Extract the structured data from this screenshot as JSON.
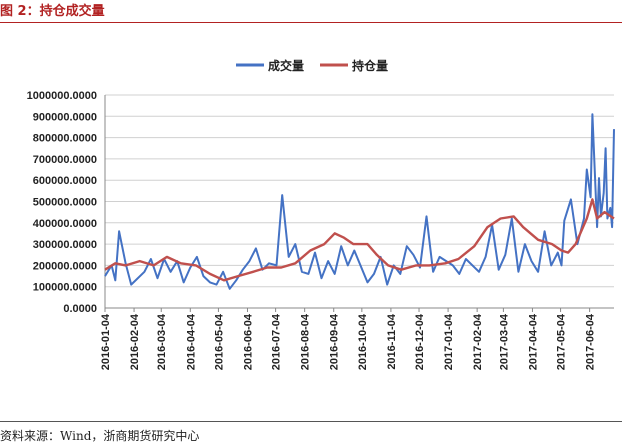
{
  "figure_title": "图 2：持仓成交量",
  "source_note": "资料来源：Wind，浙商期货研究中心",
  "chart_data": {
    "type": "line",
    "title": "",
    "xlabel": "",
    "ylabel": "",
    "ylim": [
      0,
      1000000
    ],
    "yticks": [
      "0.0000",
      "100000.0000",
      "200000.0000",
      "300000.0000",
      "400000.0000",
      "500000.0000",
      "600000.0000",
      "700000.0000",
      "800000.0000",
      "900000.0000",
      "1000000.0000"
    ],
    "xticks": [
      "2016-01-04",
      "2016-02-04",
      "2016-03-04",
      "2016-04-04",
      "2016-05-04",
      "2016-06-04",
      "2016-07-04",
      "2016-08-04",
      "2016-09-04",
      "2016-10-04",
      "2016-11-04",
      "2016-12-04",
      "2017-01-04",
      "2017-02-04",
      "2017-03-04",
      "2017-04-04",
      "2017-05-04",
      "2017-06-04"
    ],
    "xlim": [
      "2016-01-04",
      "2017-06-30"
    ],
    "grid": true,
    "legend_position": "top-center",
    "series": [
      {
        "name": "成交量",
        "color": "#4472c4",
        "x": [
          "2016-01-04",
          "2016-01-11",
          "2016-01-15",
          "2016-01-19",
          "2016-01-26",
          "2016-02-01",
          "2016-02-15",
          "2016-02-22",
          "2016-02-29",
          "2016-03-07",
          "2016-03-14",
          "2016-03-21",
          "2016-03-28",
          "2016-04-04",
          "2016-04-11",
          "2016-04-18",
          "2016-04-25",
          "2016-05-02",
          "2016-05-09",
          "2016-05-16",
          "2016-05-23",
          "2016-05-30",
          "2016-06-06",
          "2016-06-13",
          "2016-06-20",
          "2016-06-27",
          "2016-07-05",
          "2016-07-11",
          "2016-07-18",
          "2016-07-25",
          "2016-08-01",
          "2016-08-08",
          "2016-08-15",
          "2016-08-22",
          "2016-08-29",
          "2016-09-05",
          "2016-09-12",
          "2016-09-19",
          "2016-09-26",
          "2016-10-10",
          "2016-10-17",
          "2016-10-24",
          "2016-10-31",
          "2016-11-07",
          "2016-11-14",
          "2016-11-21",
          "2016-11-28",
          "2016-12-05",
          "2016-12-12",
          "2016-12-19",
          "2016-12-26",
          "2017-01-09",
          "2017-01-16",
          "2017-01-23",
          "2017-02-06",
          "2017-02-13",
          "2017-02-20",
          "2017-02-27",
          "2017-03-06",
          "2017-03-13",
          "2017-03-20",
          "2017-03-27",
          "2017-04-03",
          "2017-04-10",
          "2017-04-17",
          "2017-04-24",
          "2017-05-01",
          "2017-05-05",
          "2017-05-08",
          "2017-05-15",
          "2017-05-22",
          "2017-05-29",
          "2017-06-01",
          "2017-06-05",
          "2017-06-07",
          "2017-06-12",
          "2017-06-14",
          "2017-06-16",
          "2017-06-19",
          "2017-06-21",
          "2017-06-23",
          "2017-06-26",
          "2017-06-28",
          "2017-06-30"
        ],
        "values": [
          150000,
          200000,
          130000,
          360000,
          210000,
          110000,
          170000,
          230000,
          140000,
          230000,
          170000,
          220000,
          120000,
          190000,
          240000,
          150000,
          120000,
          110000,
          170000,
          90000,
          130000,
          180000,
          220000,
          280000,
          180000,
          210000,
          200000,
          530000,
          240000,
          300000,
          170000,
          160000,
          260000,
          140000,
          220000,
          160000,
          290000,
          200000,
          270000,
          120000,
          160000,
          240000,
          110000,
          200000,
          160000,
          290000,
          250000,
          190000,
          430000,
          170000,
          240000,
          200000,
          160000,
          230000,
          170000,
          240000,
          390000,
          180000,
          250000,
          420000,
          170000,
          300000,
          220000,
          170000,
          360000,
          200000,
          260000,
          200000,
          410000,
          510000,
          300000,
          420000,
          650000,
          520000,
          910000,
          380000,
          610000,
          430000,
          540000,
          750000,
          420000,
          470000,
          380000,
          840000
        ]
      },
      {
        "name": "持仓量",
        "color": "#c0504d",
        "x": [
          "2016-01-04",
          "2016-01-15",
          "2016-01-26",
          "2016-02-10",
          "2016-02-25",
          "2016-03-10",
          "2016-03-25",
          "2016-04-10",
          "2016-04-25",
          "2016-05-10",
          "2016-05-25",
          "2016-06-10",
          "2016-06-25",
          "2016-07-10",
          "2016-07-25",
          "2016-08-10",
          "2016-08-25",
          "2016-09-05",
          "2016-09-15",
          "2016-09-25",
          "2016-10-10",
          "2016-10-20",
          "2016-11-01",
          "2016-11-15",
          "2016-12-01",
          "2016-12-15",
          "2017-01-01",
          "2017-01-15",
          "2017-02-01",
          "2017-02-15",
          "2017-03-01",
          "2017-03-15",
          "2017-03-25",
          "2017-04-10",
          "2017-04-25",
          "2017-05-05",
          "2017-05-12",
          "2017-05-20",
          "2017-06-01",
          "2017-06-07",
          "2017-06-12",
          "2017-06-20",
          "2017-06-30"
        ],
        "values": [
          180000,
          210000,
          200000,
          220000,
          200000,
          240000,
          210000,
          200000,
          160000,
          130000,
          150000,
          170000,
          190000,
          190000,
          210000,
          270000,
          300000,
          350000,
          330000,
          300000,
          300000,
          250000,
          200000,
          180000,
          200000,
          200000,
          210000,
          230000,
          290000,
          380000,
          420000,
          430000,
          380000,
          320000,
          300000,
          270000,
          260000,
          300000,
          420000,
          510000,
          420000,
          450000,
          420000
        ]
      }
    ]
  }
}
